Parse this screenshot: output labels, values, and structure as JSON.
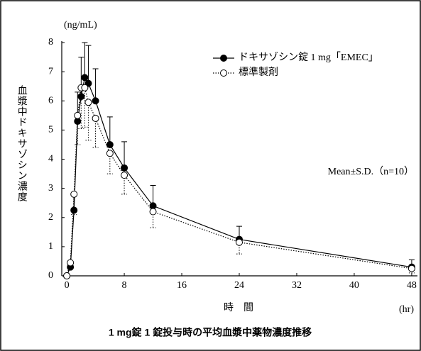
{
  "chart_data": {
    "type": "line",
    "y_unit": "(ng/mL)",
    "y_label": "血漿中ドキサゾシン濃度",
    "x_label": "時　間",
    "x_unit": "(hr)",
    "annotation": "Mean±S.D.（n=10）",
    "caption": "1 mg錠 1 錠投与時の平均血漿中薬物濃度推移",
    "x": [
      0,
      0.5,
      1,
      1.5,
      2,
      2.5,
      3,
      4,
      6,
      8,
      12,
      24,
      48
    ],
    "series": [
      {
        "name": "ドキサゾシン錠 1 mg「EMEC」",
        "color": "#000000",
        "marker": "filled",
        "line_style": "solid",
        "error_direction": "up",
        "values": [
          0,
          0.3,
          2.25,
          5.3,
          6.15,
          6.8,
          6.6,
          6.0,
          4.5,
          3.7,
          2.4,
          1.25,
          0.3
        ],
        "errors": [
          0,
          0.2,
          0.6,
          1.0,
          1.35,
          1.2,
          1.3,
          1.1,
          0.95,
          0.9,
          0.7,
          0.45,
          0.25
        ]
      },
      {
        "name": "標準製剤",
        "color": "#000000",
        "marker": "open",
        "line_style": "dotted",
        "error_direction": "down",
        "values": [
          0,
          0.45,
          2.8,
          5.5,
          6.45,
          6.45,
          5.95,
          5.4,
          4.2,
          3.45,
          2.2,
          1.15,
          0.25
        ],
        "errors": [
          0,
          0.2,
          0.7,
          1.0,
          1.4,
          1.35,
          1.3,
          1.0,
          0.7,
          0.65,
          0.55,
          0.4,
          0.15
        ]
      }
    ],
    "xlim": [
      -0.7,
      48.8
    ],
    "xticks": [
      0,
      8,
      16,
      24,
      32,
      40,
      48
    ],
    "ylim": [
      0,
      8
    ],
    "yticks": [
      0,
      1,
      2,
      3,
      4,
      5,
      6,
      7,
      8
    ],
    "legend": "upper-right"
  }
}
